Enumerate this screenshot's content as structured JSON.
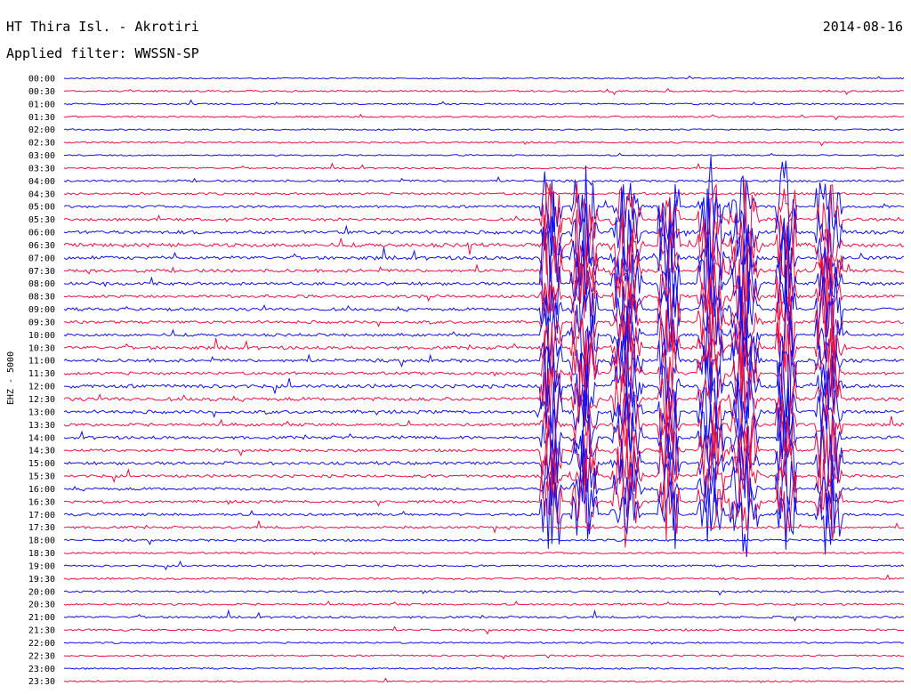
{
  "header": {
    "title": "HT Thira Isl. - Akrotiri",
    "date": "2014-08-16",
    "filter": "Applied filter: WWSSN-SP"
  },
  "chart_data": {
    "type": "line",
    "title": "HT Thira Isl. - Akrotiri",
    "date": "2014-08-16",
    "filter": "WWSSN-SP",
    "ylabel": "EHZ - 5000",
    "row_labels": [
      "00:00",
      "00:30",
      "01:00",
      "01:30",
      "02:00",
      "02:30",
      "03:00",
      "03:30",
      "04:00",
      "04:30",
      "05:00",
      "05:30",
      "06:00",
      "06:30",
      "07:00",
      "07:30",
      "08:00",
      "08:30",
      "09:00",
      "09:30",
      "10:00",
      "10:30",
      "11:00",
      "11:30",
      "12:00",
      "12:30",
      "13:00",
      "13:30",
      "14:00",
      "14:30",
      "15:00",
      "15:30",
      "16:00",
      "16:30",
      "17:00",
      "17:30",
      "18:00",
      "18:30",
      "19:00",
      "19:30",
      "20:00",
      "20:30",
      "21:00",
      "21:30",
      "22:00",
      "22:30",
      "23:00",
      "23:30"
    ],
    "series": [
      {
        "color": "#1010ee",
        "rows": "even"
      },
      {
        "color": "#ee1040",
        "rows": "odd"
      }
    ],
    "activity": [
      0.05,
      0.2,
      0.15,
      0.15,
      0.1,
      0.2,
      0.1,
      0.15,
      0.35,
      0.35,
      0.45,
      0.55,
      0.75,
      0.9,
      0.8,
      0.7,
      0.65,
      0.6,
      0.6,
      0.55,
      0.55,
      0.7,
      0.7,
      0.55,
      0.8,
      0.8,
      0.7,
      0.6,
      0.6,
      0.55,
      0.6,
      0.55,
      0.55,
      0.45,
      0.5,
      0.4,
      0.35,
      0.2,
      0.25,
      0.25,
      0.3,
      0.3,
      0.35,
      0.3,
      0.15,
      0.15,
      0.15,
      0.1
    ]
  }
}
